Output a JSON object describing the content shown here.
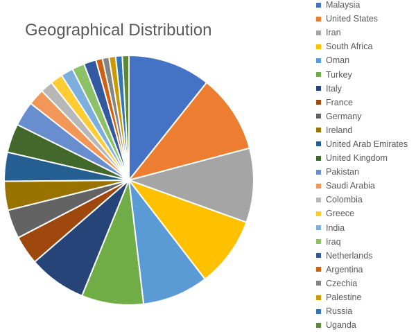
{
  "chart_data": {
    "type": "pie",
    "title": "Geographical Distribution",
    "legend_position": "right",
    "categories": [
      "Malaysia",
      "United States",
      "Iran",
      "South Africa",
      "Oman",
      "Turkey",
      "Italy",
      "France",
      "Germany",
      "Ireland",
      "United Arab Emirates",
      "United Kingdom",
      "Pakistan",
      "Saudi Arabia",
      "Colombia",
      "Greece",
      "India",
      "Iraq",
      "Netherlands",
      "Argentina",
      "Czechia",
      "Palestine",
      "Russia",
      "Uganda"
    ],
    "values": [
      10,
      9.5,
      9,
      8.5,
      8,
      7.5,
      7,
      3.5,
      3.5,
      3.5,
      3.5,
      3.5,
      3,
      2,
      1.5,
      1.5,
      1.5,
      1.5,
      1.5,
      0.8,
      0.8,
      0.8,
      0.8,
      0.8
    ],
    "colors": [
      "#4472C4",
      "#ED7D31",
      "#A5A5A5",
      "#FFC000",
      "#5B9BD5",
      "#70AD47",
      "#264478",
      "#9E480E",
      "#636363",
      "#997300",
      "#255E91",
      "#43682B",
      "#698ED0",
      "#F1975A",
      "#B7B7B7",
      "#FFCD33",
      "#7CAFDD",
      "#8CC168",
      "#335AA1",
      "#D26012",
      "#848484",
      "#CC9A00",
      "#3175B6",
      "#5A8A39"
    ]
  }
}
